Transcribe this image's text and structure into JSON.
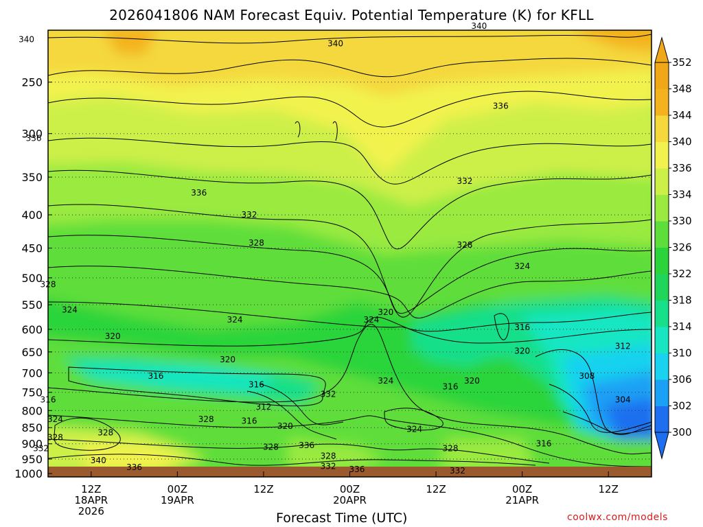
{
  "chart": {
    "title": "2026041806 NAM Forecast Equiv. Potential Temperature (K) for KFLL",
    "xlabel": "Forecast Time (UTC)",
    "credit": "coolwx.com/models"
  },
  "colors": {
    "ground": "#9a5a2e",
    "grid": "#333333",
    "colorbar": [
      "#1e6ff0",
      "#1aa0f5",
      "#19d2ef",
      "#18e6c2",
      "#18df8a",
      "#1fd65a",
      "#2bd43a",
      "#5ede3a",
      "#9aea40",
      "#cdf048",
      "#f2f24e",
      "#f4d83c",
      "#f4b21e",
      "#f0a818"
    ]
  },
  "chart_data": {
    "type": "heatmap",
    "title": "2026041806 NAM Forecast Equiv. Potential Temperature (K) for KFLL",
    "xlabel": "Forecast Time (UTC)",
    "ylabel": "",
    "y_scale": "log-pressure (inverted)",
    "y_ticks": [
      "250",
      "300",
      "350",
      "400",
      "450",
      "500",
      "550",
      "600",
      "650",
      "700",
      "750",
      "800",
      "850",
      "900",
      "950",
      "1000"
    ],
    "x_ticks": [
      {
        "line1": "12Z",
        "line2": "18APR",
        "line3": "2026"
      },
      {
        "line1": "00Z",
        "line2": "19APR",
        "line3": ""
      },
      {
        "line1": "12Z",
        "line2": "",
        "line3": ""
      },
      {
        "line1": "00Z",
        "line2": "20APR",
        "line3": ""
      },
      {
        "line1": "12Z",
        "line2": "",
        "line3": ""
      },
      {
        "line1": "00Z",
        "line2": "21APR",
        "line3": ""
      },
      {
        "line1": "12Z",
        "line2": "",
        "line3": ""
      }
    ],
    "colorbar_ticks": [
      "352",
      "348",
      "344",
      "340",
      "336",
      "334",
      "330",
      "326",
      "322",
      "318",
      "314",
      "310",
      "306",
      "302",
      "300"
    ],
    "contour_labels": [
      {
        "text": "340",
        "x_hr": 3,
        "p": 215
      },
      {
        "text": "340",
        "x_hr": 46,
        "p": 218
      },
      {
        "text": "340",
        "x_hr": 66,
        "p": 205
      },
      {
        "text": "336",
        "x_hr": 4,
        "p": 305
      },
      {
        "text": "336",
        "x_hr": 27,
        "p": 370
      },
      {
        "text": "336",
        "x_hr": 69,
        "p": 272
      },
      {
        "text": "332",
        "x_hr": 34,
        "p": 400
      },
      {
        "text": "332",
        "x_hr": 64,
        "p": 355
      },
      {
        "text": "328",
        "x_hr": 35,
        "p": 442
      },
      {
        "text": "328",
        "x_hr": 6,
        "p": 512
      },
      {
        "text": "328",
        "x_hr": 64,
        "p": 445
      },
      {
        "text": "324",
        "x_hr": 9,
        "p": 560
      },
      {
        "text": "324",
        "x_hr": 32,
        "p": 580
      },
      {
        "text": "324",
        "x_hr": 72,
        "p": 480
      },
      {
        "text": "324",
        "x_hr": 51,
        "p": 580
      },
      {
        "text": "320",
        "x_hr": 53,
        "p": 565
      },
      {
        "text": "320",
        "x_hr": 15,
        "p": 615
      },
      {
        "text": "320",
        "x_hr": 31,
        "p": 668
      },
      {
        "text": "316",
        "x_hr": 72,
        "p": 596
      },
      {
        "text": "320",
        "x_hr": 72,
        "p": 648
      },
      {
        "text": "312",
        "x_hr": 86,
        "p": 637
      },
      {
        "text": "308",
        "x_hr": 81,
        "p": 708
      },
      {
        "text": "304",
        "x_hr": 86,
        "p": 770
      },
      {
        "text": "316",
        "x_hr": 21,
        "p": 708
      },
      {
        "text": "316",
        "x_hr": 35,
        "p": 730
      },
      {
        "text": "316",
        "x_hr": 6,
        "p": 770
      },
      {
        "text": "312",
        "x_hr": 36,
        "p": 790
      },
      {
        "text": "316",
        "x_hr": 34,
        "p": 830
      },
      {
        "text": "320",
        "x_hr": 39,
        "p": 845
      },
      {
        "text": "328",
        "x_hr": 28,
        "p": 825
      },
      {
        "text": "324",
        "x_hr": 7,
        "p": 825
      },
      {
        "text": "328",
        "x_hr": 14,
        "p": 865
      },
      {
        "text": "332",
        "x_hr": 45,
        "p": 755
      },
      {
        "text": "324",
        "x_hr": 57,
        "p": 855
      },
      {
        "text": "316",
        "x_hr": 62,
        "p": 735
      },
      {
        "text": "320",
        "x_hr": 65,
        "p": 720
      },
      {
        "text": "324",
        "x_hr": 53,
        "p": 720
      },
      {
        "text": "316",
        "x_hr": 75,
        "p": 900
      },
      {
        "text": "328",
        "x_hr": 7,
        "p": 880
      },
      {
        "text": "332",
        "x_hr": 5,
        "p": 915
      },
      {
        "text": "340",
        "x_hr": 13,
        "p": 955
      },
      {
        "text": "336",
        "x_hr": 18,
        "p": 978
      },
      {
        "text": "328",
        "x_hr": 37,
        "p": 910
      },
      {
        "text": "336",
        "x_hr": 42,
        "p": 905
      },
      {
        "text": "328",
        "x_hr": 45,
        "p": 940
      },
      {
        "text": "332",
        "x_hr": 45,
        "p": 975
      },
      {
        "text": "336",
        "x_hr": 49,
        "p": 985
      },
      {
        "text": "328",
        "x_hr": 62,
        "p": 915
      },
      {
        "text": "332",
        "x_hr": 63,
        "p": 990
      }
    ]
  }
}
